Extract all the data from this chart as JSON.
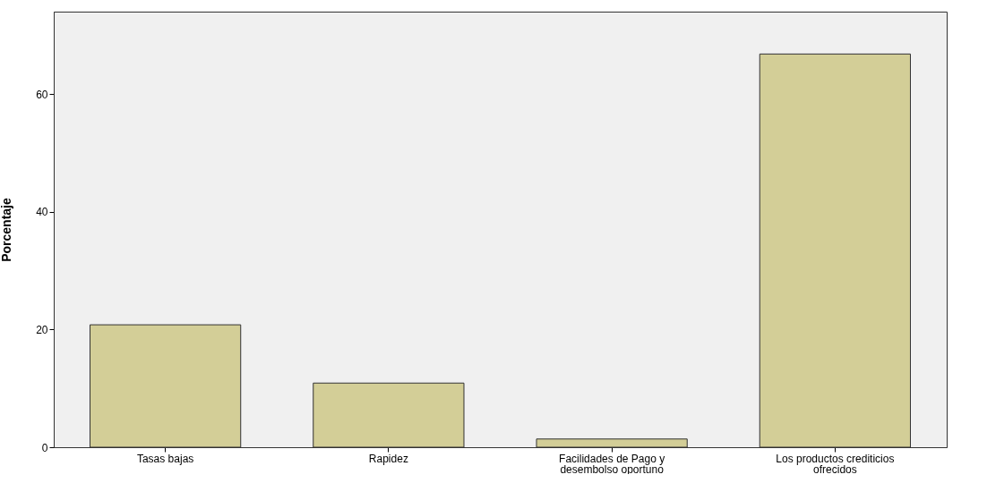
{
  "chart_data": {
    "type": "bar",
    "ylabel": "Porcentaje",
    "categories": [
      "Tasas bajas",
      "Rapidez",
      "Facilidades de Pago y desembolso oportuno",
      "Los productos crediticios ofrecidos"
    ],
    "values": [
      20.8,
      10.9,
      1.4,
      66.8
    ],
    "color": "#d3ce97",
    "ylim": [
      0,
      74
    ],
    "yticks": [
      0,
      20,
      40,
      60
    ],
    "grid": false
  }
}
